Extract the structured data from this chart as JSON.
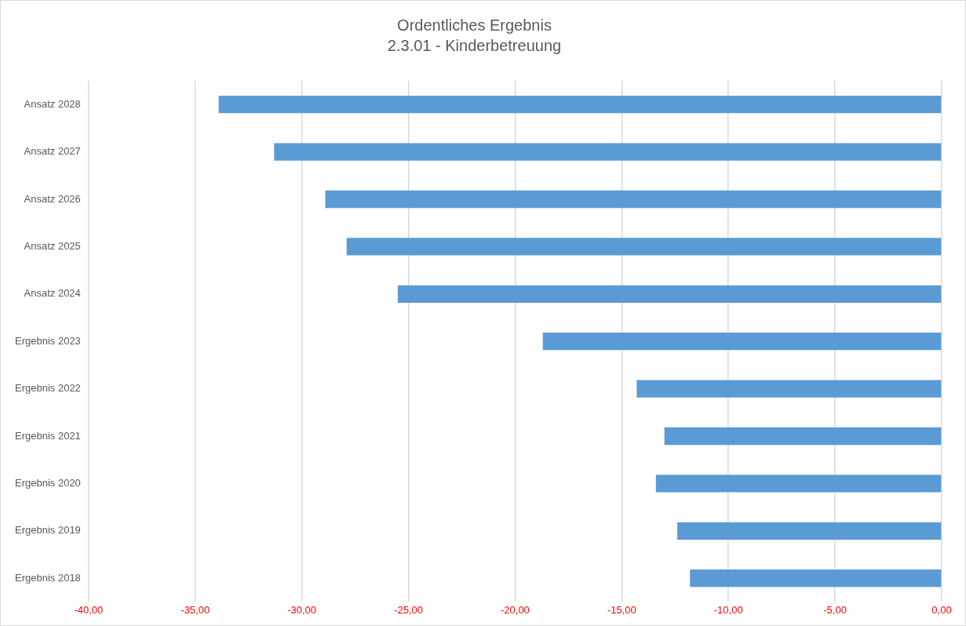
{
  "chart_data": {
    "type": "bar",
    "orientation": "horizontal",
    "title": "Ordentliches Ergebnis",
    "subtitle": "2.3.01 - Kinderbetreuung",
    "categories": [
      "Ansatz 2028",
      "Ansatz 2027",
      "Ansatz 2026",
      "Ansatz 2025",
      "Ansatz 2024",
      "Ergebnis 2023",
      "Ergebnis 2022",
      "Ergebnis 2021",
      "Ergebnis 2020",
      "Ergebnis 2019",
      "Ergebnis 2018"
    ],
    "values": [
      -33.9,
      -31.3,
      -28.9,
      -27.9,
      -25.5,
      -18.7,
      -14.3,
      -13.0,
      -13.4,
      -12.4,
      -11.8
    ],
    "color": "#5b9bd5",
    "xlim": [
      -40,
      0
    ],
    "xticks": [
      {
        "value": -40,
        "label": "-40,00"
      },
      {
        "value": -35,
        "label": "-35,00"
      },
      {
        "value": -30,
        "label": "-30,00"
      },
      {
        "value": -25,
        "label": "-25,00"
      },
      {
        "value": -20,
        "label": "-20,00"
      },
      {
        "value": -15,
        "label": "-15,00"
      },
      {
        "value": -10,
        "label": "-10,00"
      },
      {
        "value": -5,
        "label": "-5,00"
      },
      {
        "value": 0,
        "label": "0,00"
      }
    ],
    "grid": "x"
  }
}
